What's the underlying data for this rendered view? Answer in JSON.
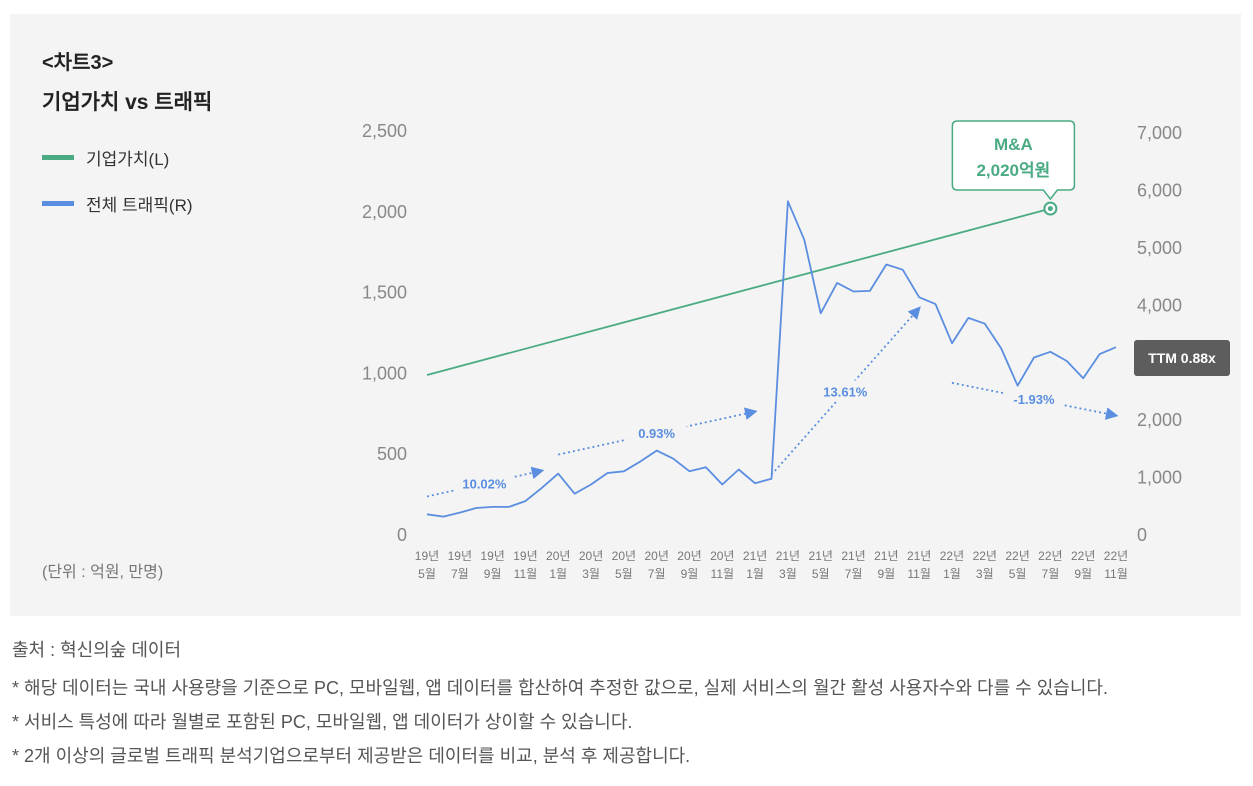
{
  "header": {
    "chart_no": "<차트3>",
    "title": "기업가치 vs 트래픽"
  },
  "legend": [
    {
      "label": "기업가치(L)",
      "color": "#4aab83"
    },
    {
      "label": "전체 트래픽(R)",
      "color": "#5b8ee0"
    }
  ],
  "unit_note": "(단위 : 억원, 만명)",
  "ttm_badge": "TTM 0.88x",
  "footer": {
    "source": "출처 : 혁신의숲 데이터",
    "notes": [
      "* 해당 데이터는 국내 사용량을 기준으로 PC, 모바일웹, 앱 데이터를 합산하여 추정한 값으로, 실제 서비스의 월간 활성 사용자수와 다를 수 있습니다.",
      "* 서비스 특성에 따라 월별로 포함된 PC, 모바일웹, 앱 데이터가 상이할 수 있습니다.",
      "* 2개 이상의 글로벌 트래픽 분석기업으로부터 제공받은 데이터를 비교, 분석 후 제공합니다."
    ]
  },
  "chart_data": {
    "type": "line",
    "title": "기업가치 vs 트래픽",
    "x_tick_labels": [
      [
        "19년",
        "5월"
      ],
      [
        "19년",
        "7월"
      ],
      [
        "19년",
        "9월"
      ],
      [
        "19년",
        "11월"
      ],
      [
        "20년",
        "1월"
      ],
      [
        "20년",
        "3월"
      ],
      [
        "20년",
        "5월"
      ],
      [
        "20년",
        "7월"
      ],
      [
        "20년",
        "9월"
      ],
      [
        "20년",
        "11월"
      ],
      [
        "21년",
        "1월"
      ],
      [
        "21년",
        "3월"
      ],
      [
        "21년",
        "5월"
      ],
      [
        "21년",
        "7월"
      ],
      [
        "21년",
        "9월"
      ],
      [
        "21년",
        "11월"
      ],
      [
        "22년",
        "1월"
      ],
      [
        "22년",
        "3월"
      ],
      [
        "22년",
        "5월"
      ],
      [
        "22년",
        "7월"
      ],
      [
        "22년",
        "9월"
      ],
      [
        "22년",
        "11월"
      ]
    ],
    "x_start": "2019-05",
    "x_end": "2022-11",
    "left_axis": {
      "ticks": [
        "0",
        "500",
        "1,000",
        "1,500",
        "2,000",
        "2,500"
      ],
      "ylim": [
        0,
        2500
      ]
    },
    "right_axis": {
      "ticks": [
        "0",
        "1,000",
        "2,000",
        "4,000",
        "5,000",
        "6,000",
        "7,000"
      ],
      "tick_values": [
        0,
        1000,
        2000,
        4000,
        5000,
        6000,
        7000
      ],
      "ylim": [
        0,
        7000
      ]
    },
    "series": [
      {
        "name": "기업가치(L)",
        "axis": "left",
        "color": "#4aab83",
        "points": [
          {
            "month_index": 0,
            "value": 990
          },
          {
            "month_index": 38,
            "value": 2020
          }
        ]
      },
      {
        "name": "전체 트래픽(R)",
        "axis": "right",
        "color": "#5b8ee0",
        "values": [
          360,
          320,
          390,
          470,
          490,
          490,
          590,
          820,
          1070,
          720,
          880,
          1080,
          1110,
          1280,
          1470,
          1330,
          1110,
          1180,
          880,
          1140,
          900,
          980,
          5810,
          5140,
          3860,
          4390,
          4240,
          4250,
          4710,
          4620,
          4140,
          4020,
          3340,
          3780,
          3680,
          3250,
          2600,
          3090,
          3190,
          3030,
          2730,
          3150,
          3270
        ]
      }
    ],
    "annotations": [
      {
        "title": "M&A",
        "text": "2,020억원",
        "month_index": 38,
        "value": 2020,
        "axis": "left"
      }
    ],
    "trend_arrows": [
      {
        "label": "10.02%",
        "from_month": 0,
        "from_value": 670,
        "to_month": 7,
        "to_value": 1120
      },
      {
        "label": "0.93%",
        "from_month": 8,
        "from_value": 1400,
        "to_month": 20,
        "to_value": 2150
      },
      {
        "label": "13.61%",
        "from_month": 21,
        "from_value": 1050,
        "to_month": 30,
        "to_value": 3950
      },
      {
        "label": "-1.93%",
        "from_month": 32,
        "from_value": 2650,
        "to_month": 42,
        "to_value": 2080
      }
    ]
  }
}
